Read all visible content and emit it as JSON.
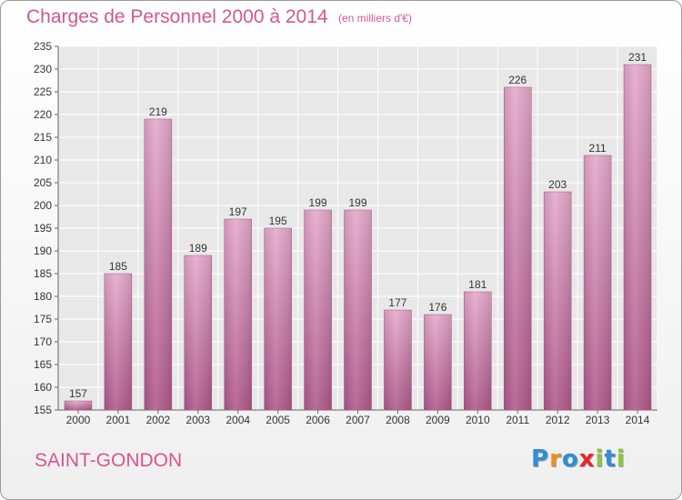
{
  "chart_data": {
    "type": "bar",
    "title": "Charges de Personnel 2000 à 2014",
    "subtitle": "(en milliers d'€)",
    "categories": [
      "2000",
      "2001",
      "2002",
      "2003",
      "2004",
      "2005",
      "2006",
      "2007",
      "2008",
      "2009",
      "2010",
      "2011",
      "2012",
      "2013",
      "2014"
    ],
    "values": [
      157,
      185,
      219,
      189,
      197,
      195,
      199,
      199,
      177,
      176,
      181,
      226,
      203,
      211,
      231
    ],
    "ylim": [
      155,
      235
    ],
    "yticks": [
      155,
      160,
      165,
      170,
      175,
      180,
      185,
      190,
      195,
      200,
      205,
      210,
      215,
      220,
      225,
      230,
      235
    ],
    "grid": true,
    "bar_color": "#c86a9e"
  },
  "footer": {
    "place": "SAINT-GONDON",
    "logo_letters": [
      {
        "char": "P",
        "color": "#2f8fd6"
      },
      {
        "char": "r",
        "color": "#f28c1e"
      },
      {
        "char": "o",
        "color": "#2f8fd6"
      },
      {
        "char": "x",
        "color": "#e8262a"
      },
      {
        "char": "i",
        "color": "#8cc63f"
      },
      {
        "char": "t",
        "color": "#2f8fd6"
      },
      {
        "char": "i",
        "color": "#8cc63f"
      }
    ]
  }
}
